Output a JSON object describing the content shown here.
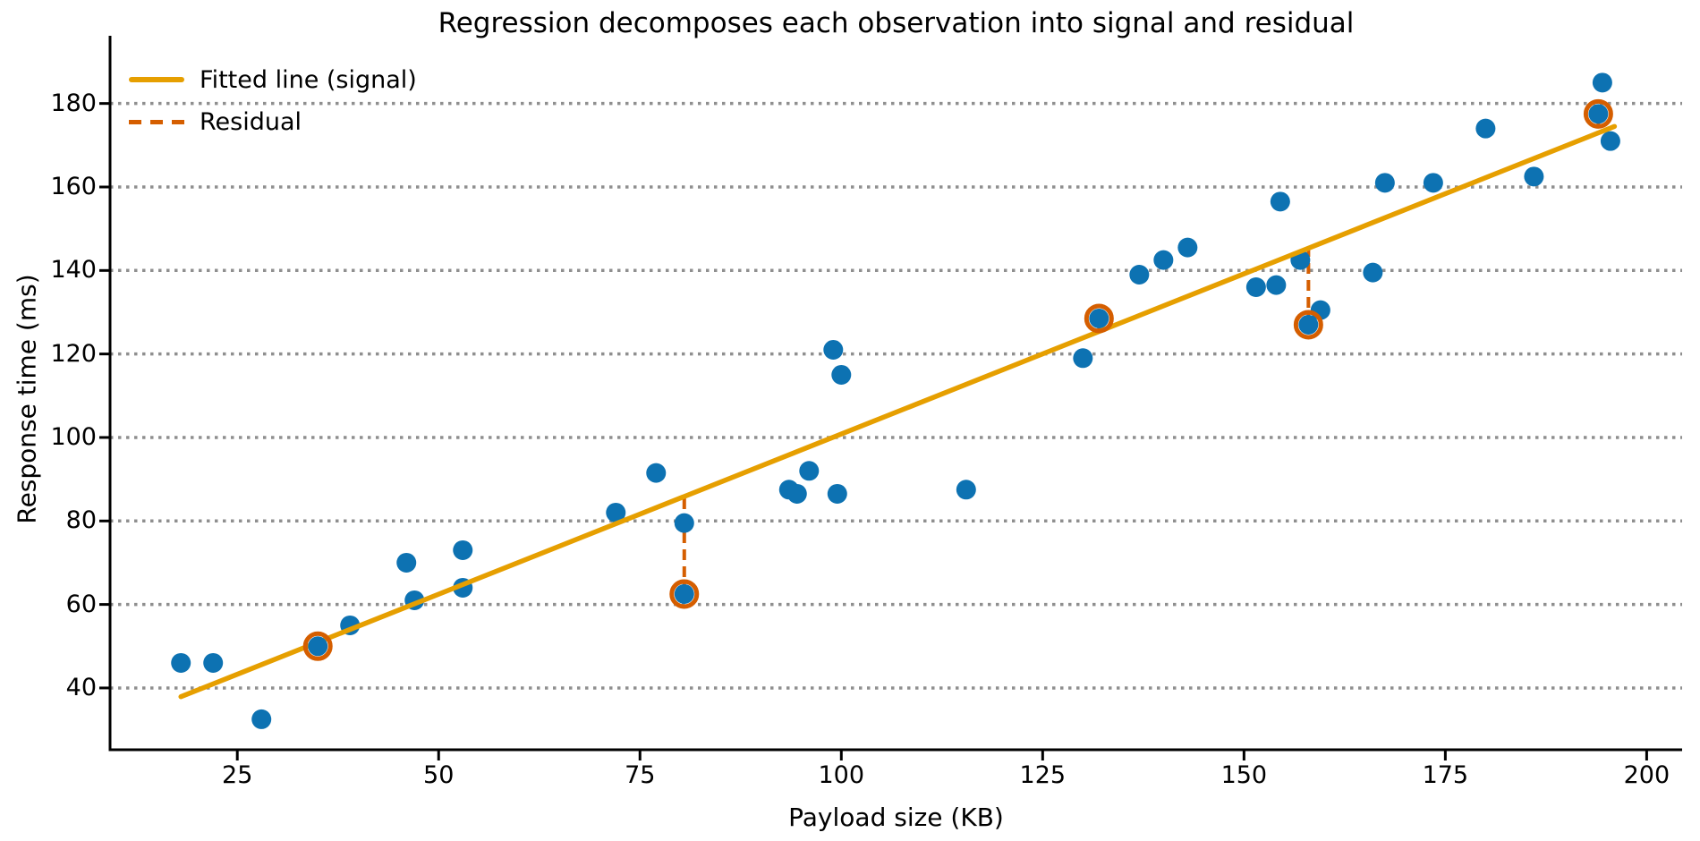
{
  "figure": {
    "title": "Regression decomposes each observation into signal and residual"
  },
  "legend": {
    "fitted_label": "Fitted line (signal)",
    "residual_label": "Residual"
  },
  "chart_data": {
    "type": "scatter",
    "title": "Regression decomposes each observation into signal and residual",
    "xlabel": "Payload size (KB)",
    "ylabel": "Response time (ms)",
    "xlim": [
      9.2,
      204.4
    ],
    "ylim": [
      25.2,
      193.0
    ],
    "x_ticks": [
      25,
      50,
      75,
      100,
      125,
      150,
      175,
      200
    ],
    "y_ticks": [
      40,
      60,
      80,
      100,
      120,
      140,
      160,
      180
    ],
    "grid": "horizontal-dotted",
    "legend_position": "upper-left-inside",
    "legend_entries": [
      {
        "label": "Fitted line (signal)",
        "style": "solid",
        "color": "#E69F00"
      },
      {
        "label": "Residual",
        "style": "dashed",
        "color": "#D55E00"
      }
    ],
    "points": [
      [
        18,
        46
      ],
      [
        22,
        46
      ],
      [
        28,
        32.5
      ],
      [
        39,
        55
      ],
      [
        46,
        70
      ],
      [
        47,
        61
      ],
      [
        53,
        73
      ],
      [
        53,
        64
      ],
      [
        72,
        82
      ],
      [
        77,
        91.5
      ],
      [
        80.5,
        79.5
      ],
      [
        93.5,
        87.5
      ],
      [
        94.5,
        86.5
      ],
      [
        96,
        92
      ],
      [
        99.5,
        86.5
      ],
      [
        99,
        121
      ],
      [
        100,
        115
      ],
      [
        115.5,
        87.5
      ],
      [
        130,
        119
      ],
      [
        137,
        139
      ],
      [
        140,
        142.5
      ],
      [
        143,
        145.5
      ],
      [
        151.5,
        136
      ],
      [
        154,
        136.5
      ],
      [
        154.5,
        156.5
      ],
      [
        157,
        142.5
      ],
      [
        159.5,
        130.5
      ],
      [
        166,
        139.5
      ],
      [
        167.5,
        161
      ],
      [
        173.5,
        161
      ],
      [
        180,
        174
      ],
      [
        186,
        162.5
      ],
      [
        194.5,
        185
      ],
      [
        195.5,
        171
      ]
    ],
    "highlighted_points": [
      [
        35,
        50
      ],
      [
        80.5,
        62.5
      ],
      [
        132,
        128.5
      ],
      [
        158,
        127
      ],
      [
        194,
        177.5
      ]
    ],
    "fitted_line": {
      "x0": 18,
      "y0": 37.9,
      "x1": 196,
      "y1": 174.5,
      "slope": 0.7674,
      "intercept": 24.1
    },
    "colors": {
      "point": "#0d72b2",
      "line": "#E69F00",
      "residual": "#D55E00",
      "highlight_ring": "#D55E00",
      "grid": "#8f8f8f",
      "axis": "#000000"
    }
  }
}
